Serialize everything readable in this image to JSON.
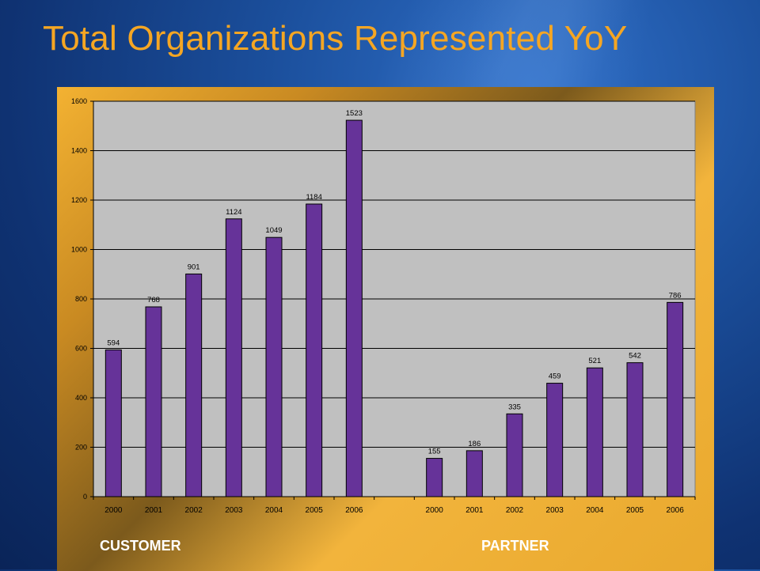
{
  "title": "Total Organizations Represented YoY",
  "group_labels": [
    "CUSTOMER",
    "PARTNER"
  ],
  "colors": {
    "bar": "#663399",
    "plot_bg": "#c0c0c0",
    "title": "#f5a623"
  },
  "chart_data": {
    "type": "bar",
    "categories": [
      "2000",
      "2001",
      "2002",
      "2003",
      "2004",
      "2005",
      "2006",
      "",
      "2000",
      "2001",
      "2002",
      "2003",
      "2004",
      "2005",
      "2006"
    ],
    "series": [
      {
        "values": [
          594,
          768,
          901,
          1124,
          1049,
          1184,
          1523,
          null,
          155,
          186,
          335,
          459,
          521,
          542,
          786
        ]
      }
    ],
    "groups": [
      {
        "label": "CUSTOMER",
        "years": [
          "2000",
          "2001",
          "2002",
          "2003",
          "2004",
          "2005",
          "2006"
        ],
        "values": [
          594,
          768,
          901,
          1124,
          1049,
          1184,
          1523
        ]
      },
      {
        "label": "PARTNER",
        "years": [
          "2000",
          "2001",
          "2002",
          "2003",
          "2004",
          "2005",
          "2006"
        ],
        "values": [
          155,
          186,
          335,
          459,
          521,
          542,
          786
        ]
      }
    ],
    "yticks": [
      0,
      200,
      400,
      600,
      800,
      1000,
      1200,
      1400,
      1600
    ],
    "ylim": [
      0,
      1600
    ],
    "grid": true,
    "legend": "none",
    "title": "Total Organizations Represented YoY",
    "xlabel": "",
    "ylabel": ""
  }
}
